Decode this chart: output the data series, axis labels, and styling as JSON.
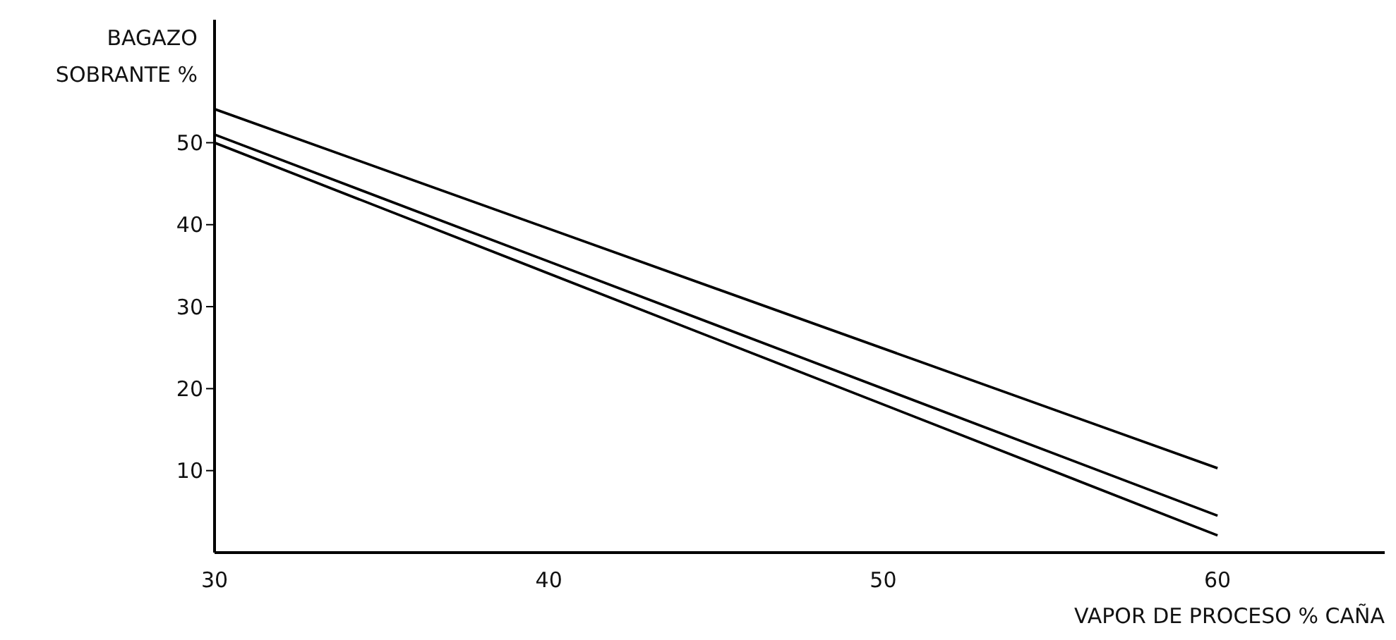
{
  "chart_data": {
    "type": "line",
    "xlabel": "VAPOR DE PROCESO % CAÑA",
    "ylabel": "BAGAZO\nSOBRANTE %",
    "x": [
      30,
      60
    ],
    "xlim": [
      30,
      65
    ],
    "ylim": [
      0,
      65
    ],
    "xticks": [
      30,
      40,
      50,
      60
    ],
    "yticks": [
      10,
      20,
      30,
      40,
      50
    ],
    "grid": false,
    "marker": "none",
    "line_style": "solid",
    "series": [
      {
        "color": "#000000",
        "values": [
          54.1,
          10.3
        ]
      },
      {
        "color": "#000000",
        "values": [
          51.0,
          4.5
        ]
      },
      {
        "color": "#000000",
        "values": [
          50.0,
          2.1
        ]
      }
    ]
  }
}
